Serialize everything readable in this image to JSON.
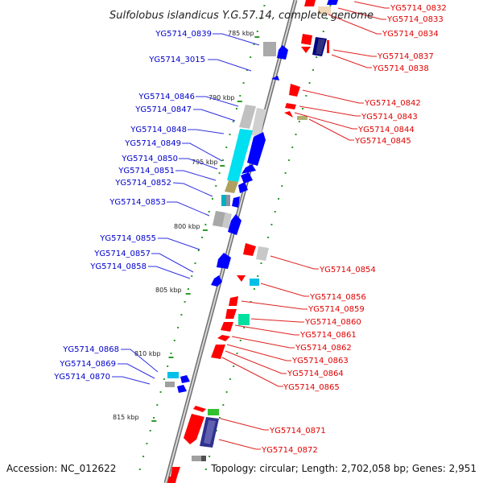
{
  "title": "Sulfolobus islandicus Y.G.57.14, complete genome",
  "footer": {
    "accession": "Accession: NC_012622",
    "summary": "Topology: circular; Length: 2,702,058 bp; Genes: 2,951"
  },
  "colors": {
    "forward_gene": "#0000ff",
    "reverse_gene": "#ff0000",
    "forward_label": "#0000cc",
    "reverse_label": "#e00000",
    "backbone": "#808080"
  },
  "kbp_marks": [
    "785 kbp",
    "790 kbp",
    "795 kbp",
    "800 kbp",
    "805 kbp",
    "810 kbp",
    "815 kbp"
  ],
  "left_labels": [
    "YG5714_0839",
    "YG5714_3015",
    "YG5714_0846",
    "YG5714_0847",
    "YG5714_0848",
    "YG5714_0849",
    "YG5714_0850",
    "YG5714_0851",
    "YG5714_0852",
    "YG5714_0853",
    "YG5714_0855",
    "YG5714_0857",
    "YG5714_0858",
    "YG5714_0868",
    "YG5714_0869",
    "YG5714_0870"
  ],
  "right_labels": [
    "YG5714_0832",
    "YG5714_0833",
    "YG5714_0834",
    "YG5714_0837",
    "YG5714_0838",
    "YG5714_0842",
    "YG5714_0843",
    "YG5714_0844",
    "YG5714_0845",
    "YG5714_0854",
    "YG5714_0856",
    "YG5714_0859",
    "YG5714_0860",
    "YG5714_0861",
    "YG5714_0862",
    "YG5714_0863",
    "YG5714_0864",
    "YG5714_0865",
    "YG5714_0871",
    "YG5714_0872"
  ]
}
